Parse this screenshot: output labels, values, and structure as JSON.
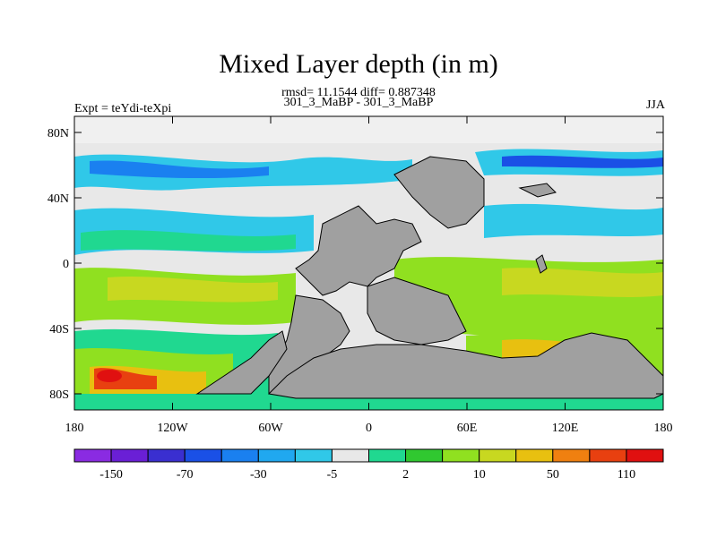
{
  "header": {
    "title": "Mixed Layer depth (in m)",
    "stats_line": "rmsd= 11.1544 diff= 0.887348",
    "comparison": "301_3_MaBP - 301_3_MaBP",
    "experiment": "Expt = teYdi-teXpi",
    "season": "JJA"
  },
  "axes": {
    "x_ticks": [
      "180",
      "120W",
      "60W",
      "0",
      "60E",
      "120E",
      "180"
    ],
    "y_ticks": [
      "80N",
      "40N",
      "0",
      "40S",
      "80S"
    ]
  },
  "colorbar": {
    "colors": [
      "#8a2be2",
      "#6a1fd6",
      "#3a2fd0",
      "#1a50e6",
      "#1a80f0",
      "#20a8f0",
      "#30c8e8",
      "#e8e8e8",
      "#20d890",
      "#30c830",
      "#90e020",
      "#c8d820",
      "#e8c010",
      "#f08010",
      "#e84010",
      "#e01010"
    ],
    "labels": [
      "-150",
      "-70",
      "-30",
      "-5",
      "2",
      "10",
      "50",
      "110"
    ]
  }
}
